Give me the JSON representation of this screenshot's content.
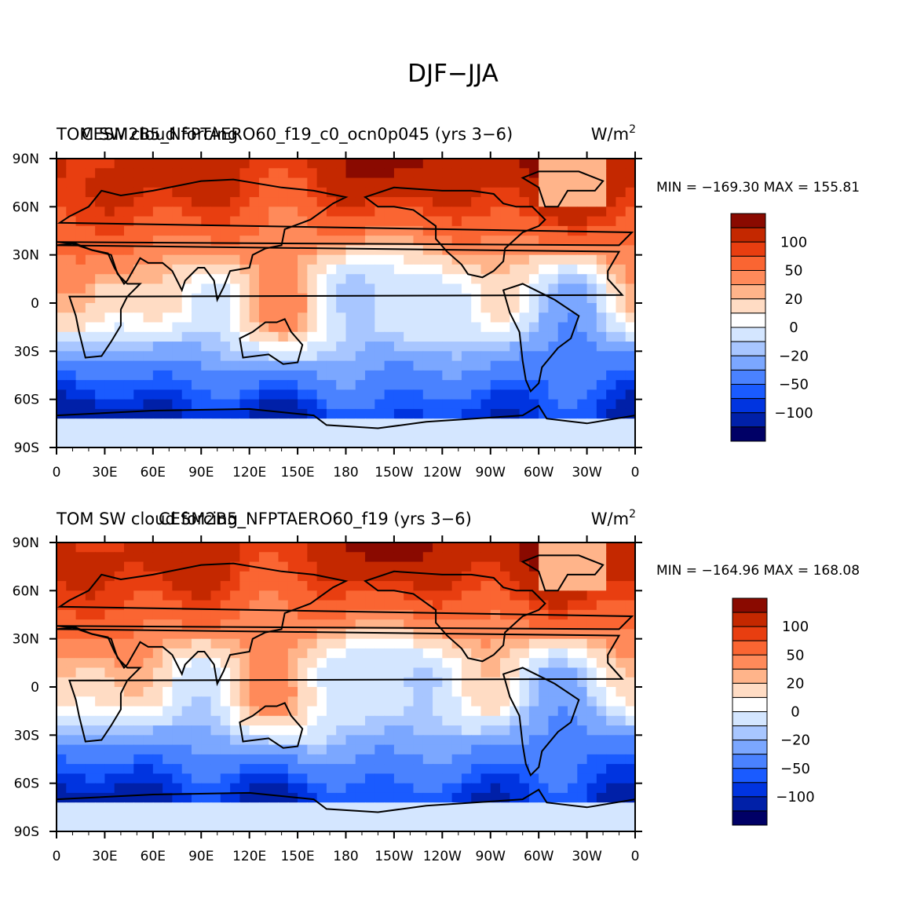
{
  "page_title": "DJF−JJA",
  "colors": {
    "levels": [
      "#000066",
      "#0020a8",
      "#0034e0",
      "#1a5bff",
      "#4a82ff",
      "#7ba7ff",
      "#a8c6ff",
      "#d4e6ff",
      "#ffffff",
      "#ffdcc4",
      "#ffb48a",
      "#ff8a5a",
      "#fa6532",
      "#e83e10",
      "#c42800",
      "#8a0a00"
    ],
    "land_outline": "#000000"
  },
  "chart_data": [
    {
      "type": "heatmap",
      "map_type": "global lat-lon contour map",
      "variable_label": "TOM SW cloud forcing",
      "case_label": "CESM2B5_NFPTAERO60_f19_c0_ocn0p045 (yrs 3−6)",
      "units_label": "W/m",
      "units_superscript": "2",
      "min_max_label": "MIN = −169.30  MAX = 155.81",
      "min": -169.3,
      "max": 155.81,
      "x_range": [
        0,
        360
      ],
      "y_range": [
        -90,
        90
      ],
      "x_ticks": [
        "0",
        "30E",
        "60E",
        "90E",
        "120E",
        "150E",
        "180",
        "150W",
        "120W",
        "90W",
        "60W",
        "30W",
        "0"
      ],
      "y_ticks": [
        "90N",
        "60N",
        "30N",
        "0",
        "30S",
        "60S",
        "90S"
      ],
      "colorbar_labels": [
        "100",
        "50",
        "20",
        "0",
        "−20",
        "−50",
        "−100"
      ]
    },
    {
      "type": "heatmap",
      "map_type": "global lat-lon contour map",
      "variable_label": "TOM SW cloud forcing",
      "case_label": "CESM2B5_NFPTAERO60_f19 (yrs 3−6)",
      "units_label": "W/m",
      "units_superscript": "2",
      "min_max_label": "MIN = −164.96  MAX = 168.08",
      "min": -164.96,
      "max": 168.08,
      "x_range": [
        0,
        360
      ],
      "y_range": [
        -90,
        90
      ],
      "x_ticks": [
        "0",
        "30E",
        "60E",
        "90E",
        "120E",
        "150E",
        "180",
        "150W",
        "120W",
        "90W",
        "60W",
        "30W",
        "0"
      ],
      "y_ticks": [
        "90N",
        "60N",
        "30N",
        "0",
        "30S",
        "60S",
        "90S"
      ],
      "colorbar_labels": [
        "100",
        "50",
        "20",
        "0",
        "−20",
        "−50",
        "−100"
      ]
    }
  ]
}
